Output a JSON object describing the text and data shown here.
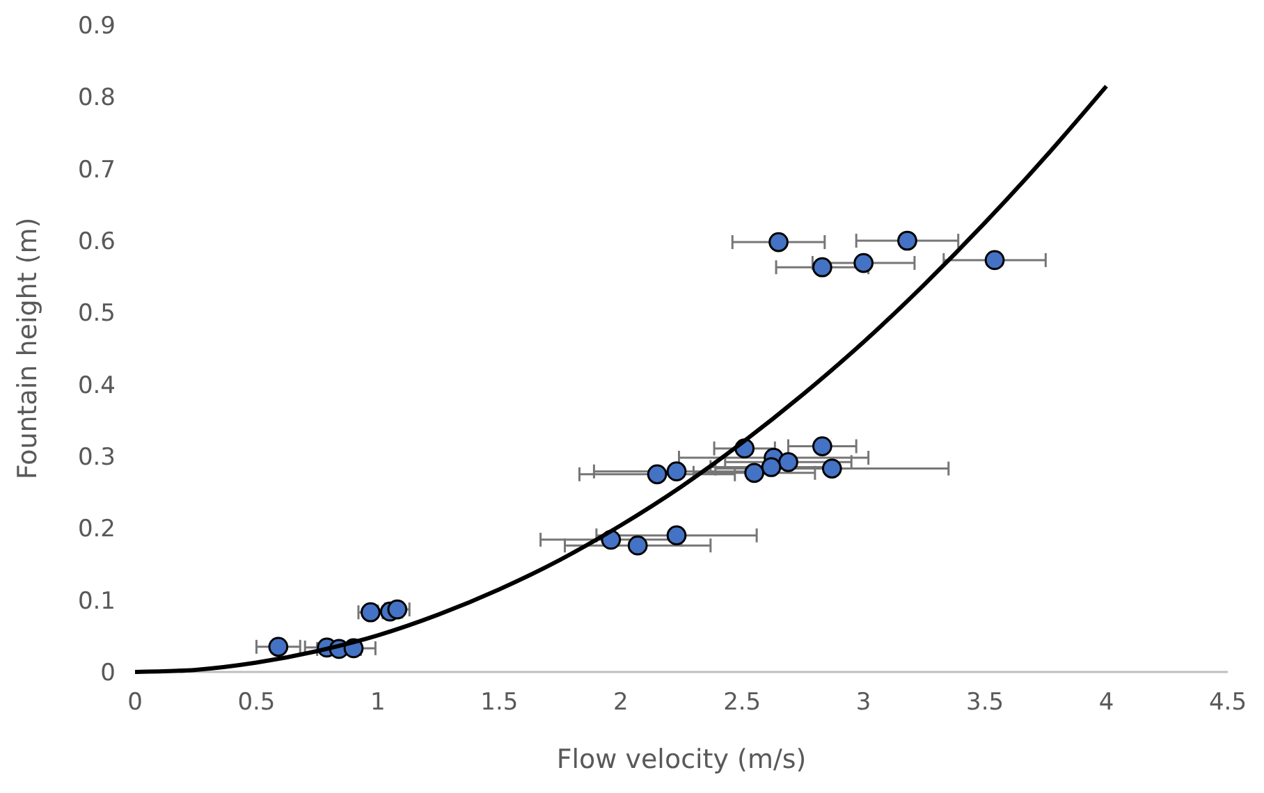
{
  "chart_data": {
    "type": "scatter",
    "xlabel": "Flow velocity (m/s)",
    "ylabel": "Fountain height (m)",
    "xlim": [
      0,
      4.5
    ],
    "ylim": [
      0,
      0.9
    ],
    "xticks": [
      0,
      0.5,
      1,
      1.5,
      2,
      2.5,
      3,
      3.5,
      4,
      4.5
    ],
    "yticks": [
      0,
      0.1,
      0.2,
      0.3,
      0.4,
      0.5,
      0.6,
      0.7,
      0.8,
      0.9
    ],
    "grid": false,
    "series": [
      {
        "marker": "circle",
        "color": "#4472c4",
        "x": [
          2.65,
          3.18,
          2.83,
          3.0,
          3.54,
          2.51,
          2.83,
          2.63,
          2.69,
          2.62,
          2.55,
          2.87,
          2.15,
          2.23,
          1.96,
          2.07,
          2.23,
          0.59,
          0.79,
          0.84,
          0.9,
          0.97,
          1.05,
          1.08
        ],
        "values": [
          0.598,
          0.6,
          0.563,
          0.569,
          0.573,
          0.311,
          0.314,
          0.298,
          0.292,
          0.285,
          0.277,
          0.283,
          0.275,
          0.279,
          0.184,
          0.176,
          0.19,
          0.035,
          0.034,
          0.032,
          0.033,
          0.083,
          0.084,
          0.087
        ],
        "xerrors": [
          0.19,
          0.21,
          0.19,
          0.21,
          0.21,
          0.125,
          0.14,
          0.39,
          0.26,
          0.25,
          0.25,
          0.48,
          0.32,
          0.34,
          0.29,
          0.3,
          0.33,
          0.09,
          0.09,
          0.09,
          0.09,
          0.05,
          0.05,
          0.05
        ]
      },
      {
        "type": "line",
        "marker": "none",
        "color": "#000000",
        "x": [
          0,
          0.25,
          0.5,
          0.75,
          1,
          1.25,
          1.5,
          1.75,
          2,
          2.25,
          2.5,
          2.75,
          3,
          3.25,
          3.5,
          3.75,
          4
        ],
        "values": [
          0,
          0.003,
          0.013,
          0.029,
          0.051,
          0.08,
          0.115,
          0.156,
          0.204,
          0.258,
          0.319,
          0.386,
          0.459,
          0.539,
          0.625,
          0.717,
          0.815
        ]
      }
    ]
  }
}
